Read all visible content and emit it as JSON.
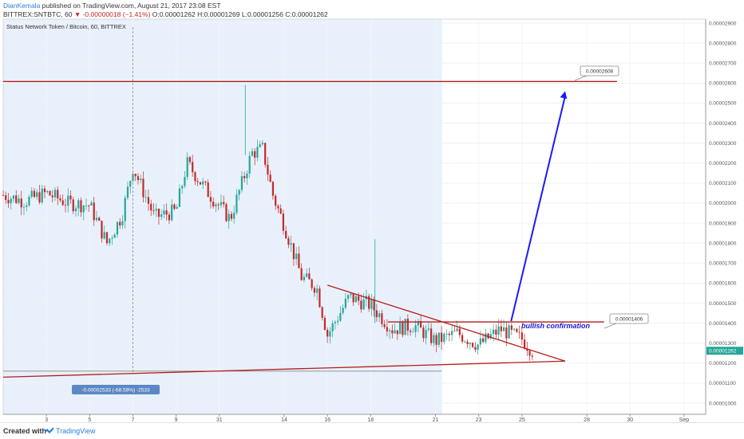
{
  "header": {
    "author": "DianKemala",
    "publish_text": " published on TradingView.com, August 21, 2017 23:08 EST",
    "symbol": "BITTREX:SNTBTC, 60",
    "open": "O:0.00001262",
    "high": "H:0.00001269",
    "low": "L:0.00001256",
    "close": "C:0.00001262",
    "change": "-0.00000018 (−1.41%)"
  },
  "chart_title": "Status Network Token / Bitcoin, 60, BITTREX",
  "footer": {
    "created_with": "Created with",
    "brand": "TradingView"
  },
  "annotations": {
    "target_label": "0.00002608",
    "breakout_label": "0.00001406",
    "bullish_text": "bullish confirmation",
    "measure_label": "-0.00002533 (-68.59%) -2533",
    "price_badge": "0.00001262"
  },
  "chart_data": {
    "type": "candlestick",
    "title": "Status Network Token / Bitcoin, 60, BITTREX",
    "y_axis": {
      "range": [
        1e-05,
        2.9e-05
      ],
      "ticks": [
        "0.00002900",
        "0.00002800",
        "0.00002700",
        "0.00002600",
        "0.00002500",
        "0.00002400",
        "0.00002300",
        "0.00002200",
        "0.00002100",
        "0.00002000",
        "0.00001900",
        "0.00001800",
        "0.00001700",
        "0.00001600",
        "0.00001500",
        "0.00001400",
        "0.00001300",
        "0.00001200",
        "0.00001100",
        "0.00001000"
      ]
    },
    "x_axis": {
      "ticks": [
        "3",
        "5",
        "7",
        "9",
        "31",
        "14",
        "16",
        "18",
        "21",
        "23",
        "25",
        "28",
        "30",
        "Sep"
      ],
      "tick_positions": [
        2,
        4,
        6,
        8,
        10,
        13,
        15,
        17,
        20,
        22,
        24,
        27,
        29,
        31.5
      ]
    },
    "price_path": [
      [
        0,
        2.04e-05
      ],
      [
        1,
        2.01e-05
      ],
      [
        2,
        2.05e-05
      ],
      [
        3,
        2e-05
      ],
      [
        4,
        1.99e-05
      ],
      [
        4.8,
        1.8e-05
      ],
      [
        5.5,
        1.94e-05
      ],
      [
        6,
        2.18e-05
      ],
      [
        7,
        1.93e-05
      ],
      [
        8,
        1.96e-05
      ],
      [
        8.5,
        2.2e-05
      ],
      [
        9.5,
        2.05e-05
      ],
      [
        10.5,
        1.92e-05
      ],
      [
        11.5,
        2.25e-05
      ],
      [
        12,
        2.27e-05
      ],
      [
        12.5,
        2.03e-05
      ],
      [
        13,
        1.89e-05
      ],
      [
        13.8,
        1.63e-05
      ],
      [
        14.5,
        1.58e-05
      ],
      [
        15,
        1.34e-05
      ],
      [
        16,
        1.53e-05
      ],
      [
        17,
        1.49e-05
      ],
      [
        18,
        1.37e-05
      ],
      [
        19,
        1.39e-05
      ],
      [
        20,
        1.31e-05
      ],
      [
        21,
        1.35e-05
      ],
      [
        22,
        1.29e-05
      ],
      [
        23,
        1.37e-05
      ],
      [
        24,
        1.32e-05
      ],
      [
        24.5,
        1.26e-05
      ]
    ],
    "lines": {
      "resistance_target": 2.608e-05,
      "breakout_level": 1.406e-05,
      "triangle_upper": [
        [
          15,
          1.59e-05
        ],
        [
          26,
          1.21e-05
        ]
      ],
      "triangle_lower": [
        [
          0,
          1.13e-05
        ],
        [
          26,
          1.21e-05
        ]
      ],
      "projection_arrow": [
        [
          23.5,
          1.41e-05
        ],
        [
          26,
          2.56e-05
        ]
      ]
    },
    "colors": {
      "up": "#26a69a",
      "down": "#c62828",
      "line": "#b71c1c",
      "arrow": "#1a1aff",
      "highlight": "#e8f1fb"
    },
    "last_price": 1.262e-05
  }
}
